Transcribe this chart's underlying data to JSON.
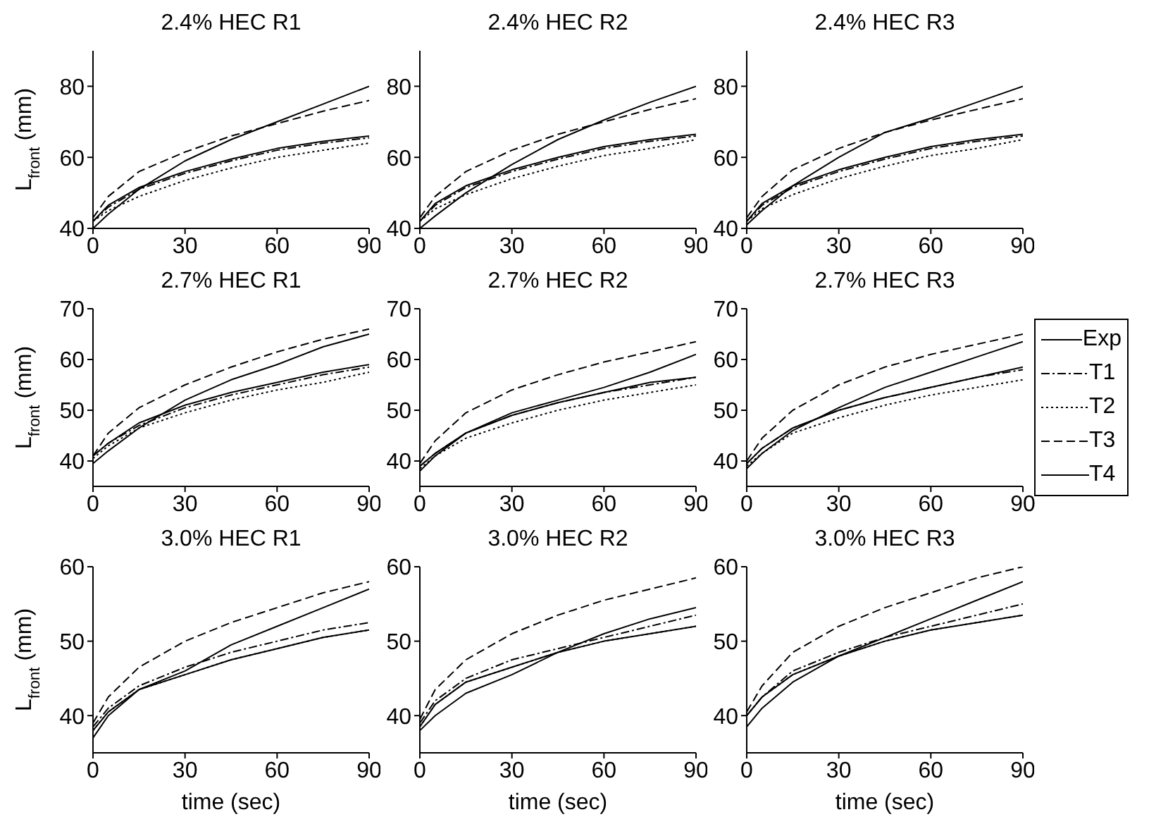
{
  "chart_data": [
    {
      "type": "line",
      "title": "2.4% HEC R1",
      "ylabel": "L$_{front}$ (mm)",
      "x": [
        0,
        5,
        15,
        30,
        45,
        60,
        75,
        90
      ],
      "xlim": [
        0,
        90
      ],
      "xticks": [
        0,
        30,
        60,
        90
      ],
      "ylim": [
        40,
        90
      ],
      "yticks": [
        40,
        60,
        80
      ],
      "series": [
        {
          "color": "#000000",
          "line_style": "solid",
          "values": [
            40,
            44,
            51,
            59,
            65,
            70,
            75,
            80
          ]
        },
        {
          "color": "#000000",
          "line_style": "dashdot",
          "values": [
            42,
            46,
            51,
            55.5,
            59,
            62,
            64,
            65.5
          ]
        },
        {
          "color": "#000000",
          "line_style": "dotted",
          "values": [
            42,
            45,
            49,
            53.5,
            57,
            60,
            62,
            64
          ]
        },
        {
          "color": "#000000",
          "line_style": "dashed",
          "values": [
            43,
            49,
            56,
            61.5,
            66,
            69.5,
            73,
            76
          ]
        },
        {
          "color": "#000000",
          "line_style": "solid",
          "values": [
            42,
            46.5,
            51.5,
            56,
            59.5,
            62.5,
            64.5,
            66
          ]
        }
      ]
    },
    {
      "type": "line",
      "title": "2.4% HEC R2",
      "x": [
        0,
        5,
        15,
        30,
        45,
        60,
        75,
        90
      ],
      "xlim": [
        0,
        90
      ],
      "xticks": [
        0,
        30,
        60,
        90
      ],
      "ylim": [
        40,
        90
      ],
      "yticks": [
        40,
        60,
        80
      ],
      "series": [
        {
          "color": "#000000",
          "line_style": "solid",
          "values": [
            40,
            43.5,
            50,
            58,
            65,
            70.5,
            75.5,
            80
          ]
        },
        {
          "color": "#000000",
          "line_style": "dashdot",
          "values": [
            42,
            46.5,
            51.5,
            56,
            59.5,
            62.5,
            64.5,
            66
          ]
        },
        {
          "color": "#000000",
          "line_style": "dotted",
          "values": [
            42,
            45.5,
            49.5,
            54,
            57.5,
            60.5,
            62.5,
            65
          ]
        },
        {
          "color": "#000000",
          "line_style": "dashed",
          "values": [
            43,
            49,
            56,
            62,
            66.5,
            70,
            73.5,
            76.5
          ]
        },
        {
          "color": "#000000",
          "line_style": "solid",
          "values": [
            42,
            47,
            52,
            56.5,
            60,
            63,
            65,
            66.5
          ]
        }
      ]
    },
    {
      "type": "line",
      "title": "2.4% HEC R3",
      "x": [
        0,
        5,
        15,
        30,
        45,
        60,
        75,
        90
      ],
      "xlim": [
        0,
        90
      ],
      "xticks": [
        0,
        30,
        60,
        90
      ],
      "ylim": [
        40,
        90
      ],
      "yticks": [
        40,
        60,
        80
      ],
      "series": [
        {
          "color": "#000000",
          "line_style": "solid",
          "values": [
            41,
            45,
            52,
            60,
            67,
            71,
            75.5,
            80
          ]
        },
        {
          "color": "#000000",
          "line_style": "dashdot",
          "values": [
            42,
            46.5,
            51.5,
            56,
            59.5,
            62.5,
            64.5,
            66
          ]
        },
        {
          "color": "#000000",
          "line_style": "dotted",
          "values": [
            42,
            45.5,
            49.5,
            54,
            57.5,
            60.5,
            62.5,
            65
          ]
        },
        {
          "color": "#000000",
          "line_style": "dashed",
          "values": [
            43,
            49,
            56.5,
            62.5,
            67,
            70.5,
            73.5,
            76.5
          ]
        },
        {
          "color": "#000000",
          "line_style": "solid",
          "values": [
            42,
            47,
            52,
            56.5,
            60,
            63,
            65,
            66.5
          ]
        }
      ]
    },
    {
      "type": "line",
      "title": "2.7% HEC R1",
      "ylabel": "L$_{front}$ (mm)",
      "x": [
        0,
        5,
        15,
        30,
        45,
        60,
        75,
        90
      ],
      "xlim": [
        0,
        90
      ],
      "xticks": [
        0,
        30,
        60,
        90
      ],
      "ylim": [
        35,
        70
      ],
      "yticks": [
        40,
        50,
        60,
        70
      ],
      "series": [
        {
          "color": "#000000",
          "line_style": "solid",
          "values": [
            39.5,
            42,
            46.5,
            52,
            56,
            59,
            62.5,
            65
          ]
        },
        {
          "color": "#000000",
          "line_style": "dashdot",
          "values": [
            41,
            43.5,
            47,
            50.5,
            53,
            55,
            57,
            58.5
          ]
        },
        {
          "color": "#000000",
          "line_style": "dotted",
          "values": [
            40.5,
            43,
            46.5,
            49.5,
            52,
            54,
            55.5,
            57.5
          ]
        },
        {
          "color": "#000000",
          "line_style": "dashed",
          "values": [
            41,
            45.5,
            50.5,
            55,
            58.5,
            61.5,
            64,
            66
          ]
        },
        {
          "color": "#000000",
          "line_style": "solid",
          "values": [
            41,
            43.5,
            47.5,
            51,
            53.5,
            55.5,
            57.5,
            59
          ]
        }
      ]
    },
    {
      "type": "line",
      "title": "2.7% HEC R2",
      "x": [
        0,
        5,
        15,
        30,
        45,
        60,
        75,
        90
      ],
      "xlim": [
        0,
        90
      ],
      "xticks": [
        0,
        30,
        60,
        90
      ],
      "ylim": [
        35,
        70
      ],
      "yticks": [
        40,
        50,
        60,
        70
      ],
      "series": [
        {
          "color": "#000000",
          "line_style": "solid",
          "values": [
            38,
            41,
            45.5,
            49.5,
            52,
            54.5,
            57.5,
            61
          ]
        },
        {
          "color": "#000000",
          "line_style": "dashdot",
          "values": [
            39,
            41.5,
            45.5,
            49,
            51.5,
            53.5,
            55,
            56.5
          ]
        },
        {
          "color": "#000000",
          "line_style": "dotted",
          "values": [
            38.5,
            41,
            44.5,
            47.5,
            50,
            52,
            53.5,
            55
          ]
        },
        {
          "color": "#000000",
          "line_style": "dashed",
          "values": [
            39.5,
            44,
            49.5,
            54,
            57,
            59.5,
            61.5,
            63.5
          ]
        },
        {
          "color": "#000000",
          "line_style": "solid",
          "values": [
            39,
            41.5,
            45.5,
            49,
            51.5,
            53.5,
            55.5,
            56.5
          ]
        }
      ]
    },
    {
      "type": "line",
      "title": "2.7% HEC R3",
      "legend": "right",
      "x": [
        0,
        5,
        15,
        30,
        45,
        60,
        75,
        90
      ],
      "xlim": [
        0,
        90
      ],
      "xticks": [
        0,
        30,
        60,
        90
      ],
      "ylim": [
        35,
        70
      ],
      "yticks": [
        40,
        50,
        60,
        70
      ],
      "series": [
        {
          "name": "Exp",
          "color": "#000000",
          "line_style": "solid",
          "values": [
            38.5,
            41.5,
            46,
            50.5,
            54.5,
            57.5,
            60.5,
            63.5
          ]
        },
        {
          "name": "T1",
          "color": "#000000",
          "line_style": "dashdot",
          "values": [
            39.5,
            42.5,
            46.5,
            50,
            52.5,
            54.5,
            56.5,
            58
          ]
        },
        {
          "name": "T2",
          "color": "#000000",
          "line_style": "dotted",
          "values": [
            39,
            41.5,
            45.5,
            48.5,
            51,
            53,
            54.5,
            56
          ]
        },
        {
          "name": "T3",
          "color": "#000000",
          "line_style": "dashed",
          "values": [
            40,
            44.5,
            50,
            55,
            58.5,
            61,
            63,
            65
          ]
        },
        {
          "name": "T4",
          "color": "#000000",
          "line_style": "solid",
          "values": [
            39.5,
            42.5,
            46.5,
            50,
            52.5,
            54.5,
            56.5,
            58.5
          ]
        }
      ]
    },
    {
      "type": "line",
      "title": "3.0% HEC R1",
      "xlabel": "time (sec)",
      "ylabel": "L$_{front}$ (mm)",
      "x": [
        0,
        5,
        15,
        30,
        45,
        60,
        75,
        90
      ],
      "xlim": [
        0,
        90
      ],
      "xticks": [
        0,
        30,
        60,
        90
      ],
      "ylim": [
        35,
        60
      ],
      "yticks": [
        40,
        50,
        60
      ],
      "series": [
        {
          "color": "#000000",
          "line_style": "solid",
          "values": [
            37,
            40,
            43.5,
            46,
            49.5,
            52,
            54.5,
            57
          ]
        },
        {
          "color": "#000000",
          "line_style": "dashdot",
          "values": [
            38.5,
            41,
            44,
            46.5,
            48.5,
            50,
            51.5,
            52.5
          ]
        },
        {
          "color": "#000000",
          "line_style": "dotted",
          "values": [
            38,
            40.5,
            43.5,
            45.5,
            47.5,
            49,
            50.5,
            51.5
          ]
        },
        {
          "color": "#000000",
          "line_style": "dashed",
          "values": [
            39,
            42.5,
            46.5,
            50,
            52.5,
            54.5,
            56.5,
            58
          ]
        },
        {
          "color": "#000000",
          "line_style": "solid",
          "values": [
            38,
            40.5,
            43.5,
            45.5,
            47.5,
            49,
            50.5,
            51.5
          ]
        }
      ]
    },
    {
      "type": "line",
      "title": "3.0% HEC R2",
      "xlabel": "time (sec)",
      "x": [
        0,
        5,
        15,
        30,
        45,
        60,
        75,
        90
      ],
      "xlim": [
        0,
        90
      ],
      "xticks": [
        0,
        30,
        60,
        90
      ],
      "ylim": [
        35,
        60
      ],
      "yticks": [
        40,
        50,
        60
      ],
      "series": [
        {
          "color": "#000000",
          "line_style": "solid",
          "values": [
            38,
            40,
            43,
            45.5,
            48.5,
            51,
            53,
            54.5
          ]
        },
        {
          "color": "#000000",
          "line_style": "dashdot",
          "values": [
            39,
            42,
            45,
            47.5,
            49,
            50.5,
            52,
            53.5
          ]
        },
        {
          "color": "#000000",
          "line_style": "dotted",
          "values": [
            38.5,
            41.5,
            44.5,
            46.5,
            48.5,
            50,
            51,
            52
          ]
        },
        {
          "color": "#000000",
          "line_style": "dashed",
          "values": [
            39.5,
            43.5,
            47.5,
            51,
            53.5,
            55.5,
            57,
            58.5
          ]
        },
        {
          "color": "#000000",
          "line_style": "solid",
          "values": [
            38.5,
            41.5,
            44.5,
            46.5,
            48.5,
            50,
            51,
            52
          ]
        }
      ]
    },
    {
      "type": "line",
      "title": "3.0% HEC R3",
      "xlabel": "time (sec)",
      "x": [
        0,
        5,
        15,
        30,
        45,
        60,
        75,
        90
      ],
      "xlim": [
        0,
        90
      ],
      "xticks": [
        0,
        30,
        60,
        90
      ],
      "ylim": [
        35,
        60
      ],
      "yticks": [
        40,
        50,
        60
      ],
      "series": [
        {
          "color": "#000000",
          "line_style": "solid",
          "values": [
            38.5,
            41,
            44.5,
            48,
            50.5,
            53,
            55.5,
            58
          ]
        },
        {
          "color": "#000000",
          "line_style": "dashdot",
          "values": [
            40,
            42.5,
            46,
            48.5,
            50.5,
            52,
            53.5,
            55
          ]
        },
        {
          "color": "#000000",
          "line_style": "dotted",
          "values": [
            40,
            42.5,
            45.5,
            48,
            50,
            51.5,
            52.5,
            53.5
          ]
        },
        {
          "color": "#000000",
          "line_style": "dashed",
          "values": [
            40.5,
            44,
            48.5,
            52,
            54.5,
            56.5,
            58.5,
            60
          ]
        },
        {
          "color": "#000000",
          "line_style": "solid",
          "values": [
            40,
            42.5,
            45.5,
            48,
            50,
            51.5,
            52.5,
            53.5
          ]
        }
      ]
    }
  ]
}
